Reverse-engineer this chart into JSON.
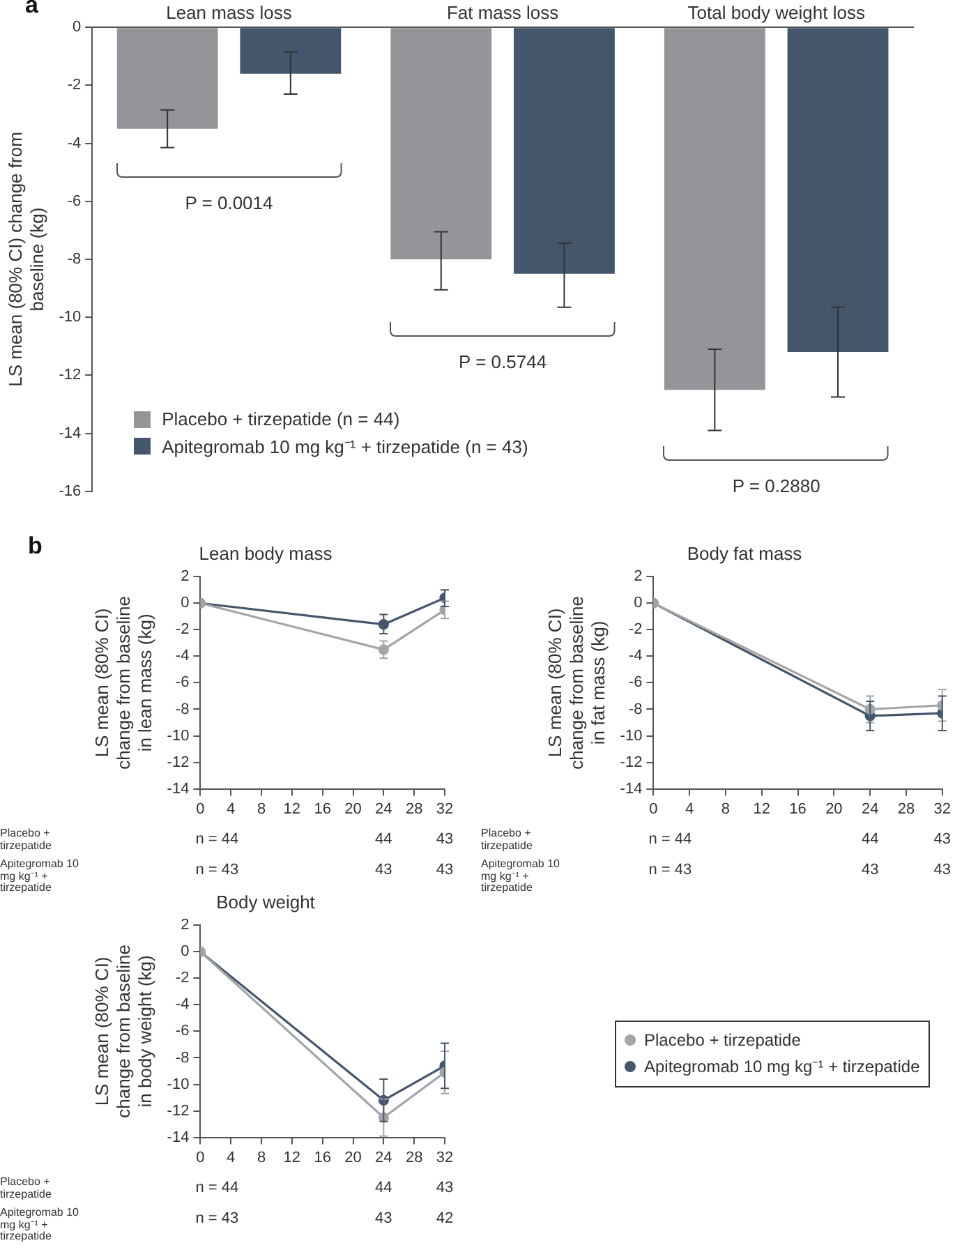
{
  "chart_data": [
    {
      "type": "bar",
      "categories": [
        "Lean mass loss",
        "Fat mass loss",
        "Total body weight loss"
      ],
      "series": [
        {
          "name": "Placebo + tirzepatide (n = 44)",
          "color": "#939598",
          "values": [
            -3.5,
            -8.0,
            -12.5
          ],
          "errors": [
            [
              -4.15,
              -2.85
            ],
            [
              -9.05,
              -7.05
            ],
            [
              -13.9,
              -11.1
            ]
          ]
        },
        {
          "name": "Apitegromab 10 mg kg⁻¹ + tirzepatide (n = 43)",
          "color": "#44566c",
          "values": [
            -1.6,
            -8.5,
            -11.2
          ],
          "errors": [
            [
              -2.3,
              -0.85
            ],
            [
              -9.65,
              -7.45
            ],
            [
              -12.75,
              -9.65
            ]
          ]
        }
      ],
      "ylabel": "LS mean (80% CI) change from baseline (kg)",
      "ylim": [
        -16,
        0
      ],
      "yticks": [
        0,
        -2,
        -4,
        -6,
        -8,
        -10,
        -12,
        -14,
        -16
      ],
      "grid": false,
      "legend": "bottom left",
      "annotations": [
        "a",
        "P = 0.0014",
        "P = 0.5744",
        "P = 0.2880"
      ]
    },
    {
      "type": "line",
      "title": "Lean body mass",
      "x": [
        0,
        24,
        32
      ],
      "series": [
        {
          "color": "#a3a5a8",
          "values": [
            0,
            -3.5,
            -0.5
          ],
          "errors": [
            null,
            [
              -4.15,
              -2.85
            ],
            [
              -1.15,
              0.15
            ]
          ]
        },
        {
          "color": "#44566c",
          "values": [
            0,
            -1.6,
            0.4
          ],
          "errors": [
            null,
            [
              -2.3,
              -0.85
            ],
            [
              -0.25,
              1.0
            ]
          ]
        }
      ],
      "ylabel": "LS mean (80% CI) change from baseline in lean mass (kg)",
      "xlim": [
        0,
        32
      ],
      "xticks": [
        0,
        4,
        8,
        12,
        16,
        20,
        24,
        28,
        32
      ],
      "ylim": [
        -14,
        2
      ],
      "yticks": [
        2,
        0,
        -2,
        -4,
        -6,
        -8,
        -10,
        -12,
        -14
      ],
      "grid": false,
      "legend": false,
      "marker": "circle",
      "annotations": [
        "b",
        "Placebo + tirzepatide",
        "n = 44",
        "44",
        "43",
        "Apitegromab 10 mg kg⁻¹ + tirzepatide",
        "n = 43",
        "43",
        "43"
      ]
    },
    {
      "type": "line",
      "title": "Body fat mass",
      "x": [
        0,
        24,
        32
      ],
      "series": [
        {
          "color": "#a3a5a8",
          "values": [
            0,
            -8.0,
            -7.7
          ],
          "errors": [
            null,
            [
              -9.0,
              -7.0
            ],
            [
              -8.9,
              -6.5
            ]
          ]
        },
        {
          "color": "#44566c",
          "values": [
            0,
            -8.5,
            -8.3
          ],
          "errors": [
            null,
            [
              -9.6,
              -7.4
            ],
            [
              -9.6,
              -7.0
            ]
          ]
        }
      ],
      "ylabel": "LS mean (80% CI) change from baseline in fat mass (kg)",
      "xlim": [
        0,
        32
      ],
      "xticks": [
        0,
        4,
        8,
        12,
        16,
        20,
        24,
        28,
        32
      ],
      "ylim": [
        -14,
        2
      ],
      "yticks": [
        2,
        0,
        -2,
        -4,
        -6,
        -8,
        -10,
        -12,
        -14
      ],
      "grid": false,
      "legend": false,
      "marker": "circle",
      "annotations": [
        "Placebo + tirzepatide",
        "n = 44",
        "44",
        "43",
        "Apitegromab 10 mg kg⁻¹ + tirzepatide",
        "n = 43",
        "43",
        "43"
      ]
    },
    {
      "type": "line",
      "title": "Body weight",
      "x": [
        0,
        24,
        32
      ],
      "series": [
        {
          "name": "Placebo + tirzepatide",
          "color": "#a3a5a8",
          "values": [
            0,
            -12.5,
            -9.1
          ],
          "errors": [
            null,
            [
              -13.9,
              -11.1
            ],
            [
              -10.7,
              -7.5
            ]
          ]
        },
        {
          "name": "Apitegromab 10 mg kg⁻¹ + tirzepatide",
          "color": "#44566c",
          "values": [
            0,
            -11.2,
            -8.6
          ],
          "errors": [
            null,
            [
              -12.8,
              -9.6
            ],
            [
              -10.3,
              -6.9
            ]
          ]
        }
      ],
      "ylabel": "LS mean (80% CI) change from baseline in body weight (kg)",
      "xlim": [
        0,
        32
      ],
      "xticks": [
        0,
        4,
        8,
        12,
        16,
        20,
        24,
        28,
        32
      ],
      "ylim": [
        -14,
        2
      ],
      "yticks": [
        2,
        0,
        -2,
        -4,
        -6,
        -8,
        -10,
        -12,
        -14
      ],
      "grid": false,
      "legend": "right",
      "marker": "circle",
      "annotations": [
        "Placebo + tirzepatide",
        "n = 44",
        "44",
        "43",
        "Apitegromab 10 mg kg⁻¹ + tirzepatide",
        "n = 43",
        "43",
        "42"
      ]
    }
  ]
}
